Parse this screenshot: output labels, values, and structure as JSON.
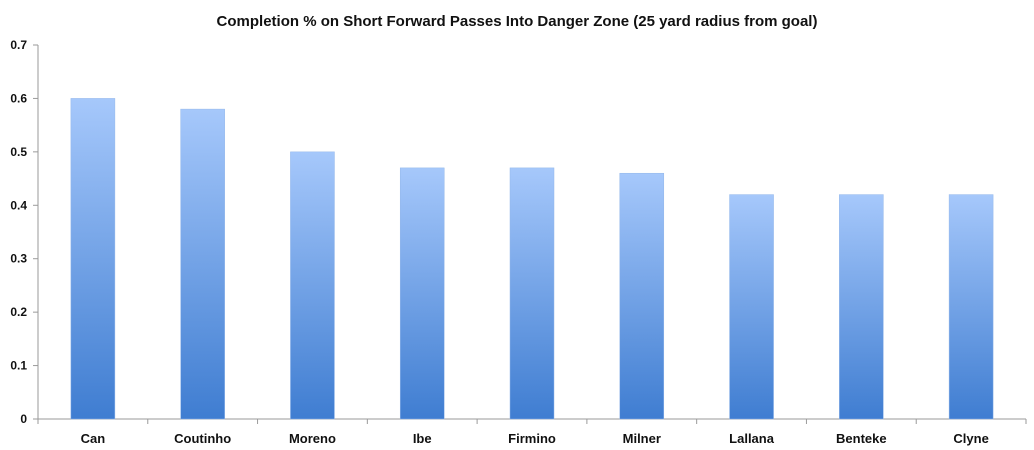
{
  "chart_data": {
    "type": "bar",
    "title": "Completion % on Short Forward Passes Into Danger Zone (25 yard radius from goal)",
    "xlabel": "",
    "ylabel": "",
    "categories": [
      "Can",
      "Coutinho",
      "Moreno",
      "Ibe",
      "Firmino",
      "Milner",
      "Lallana",
      "Benteke",
      "Clyne"
    ],
    "values": [
      0.6,
      0.58,
      0.5,
      0.47,
      0.47,
      0.46,
      0.42,
      0.42,
      0.42
    ],
    "ylim": [
      0,
      0.7
    ],
    "yticks": [
      "0",
      "0.1",
      "0.2",
      "0.3",
      "0.4",
      "0.5",
      "0.6",
      "0.7"
    ],
    "grid": false,
    "legend": "none",
    "bar_color_top": "#a6c8fb",
    "bar_color_bottom": "#3f7dd1"
  }
}
